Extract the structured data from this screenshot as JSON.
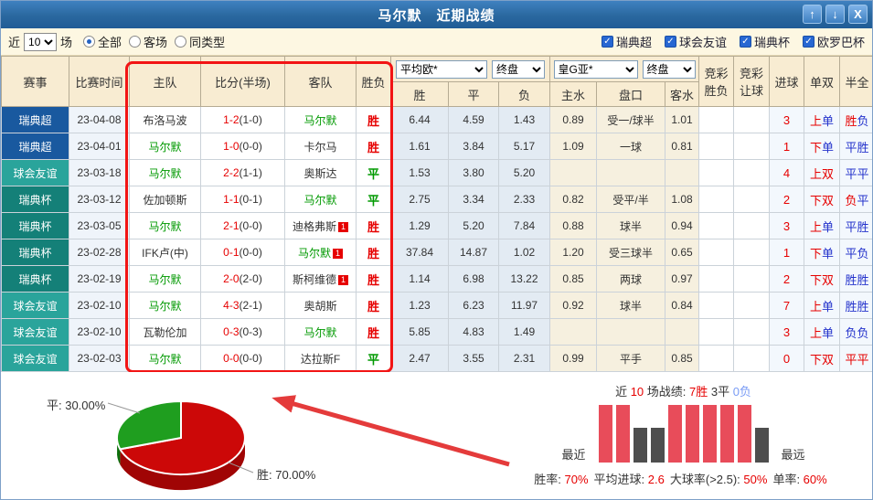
{
  "window": {
    "title": "马尔默　近期战绩",
    "buttons": {
      "up": "↑",
      "down": "↓",
      "close": "X"
    }
  },
  "filters": {
    "near_label": "近",
    "matches_value": "10",
    "unit_label": "场",
    "radios": [
      {
        "label": "全部",
        "checked": true
      },
      {
        "label": "客场",
        "checked": false
      },
      {
        "label": "同类型",
        "checked": false
      }
    ],
    "leagues": [
      {
        "label": "瑞典超",
        "checked": true
      },
      {
        "label": "球会友谊",
        "checked": true
      },
      {
        "label": "瑞典杯",
        "checked": true
      },
      {
        "label": "欧罗巴杯",
        "checked": true
      }
    ]
  },
  "table": {
    "headers": {
      "league": "赛事",
      "time": "比赛时间",
      "home": "主队",
      "score": "比分(半场)",
      "away": "客队",
      "result": "胜负",
      "win": "胜",
      "draw": "平",
      "lose": "负",
      "home_water": "主水",
      "handicap": "盘口",
      "away_water": "客水",
      "jc1a": "竞彩",
      "jc1b": "胜负",
      "jc2a": "竞彩",
      "jc2b": "让球",
      "goals": "进球",
      "odd_even": "单双",
      "half_full": "半全"
    },
    "selects": {
      "odds_company": "平均欧*",
      "odds_stage": "终盘",
      "asian_company": "皇G亚*",
      "asian_stage": "终盘"
    },
    "league_colors": {
      "瑞典超": "#19599F",
      "球会友谊": "#2AA49B",
      "瑞典杯": "#148078"
    },
    "rows": [
      {
        "league": "瑞典超",
        "date": "23-04-08",
        "home": {
          "name": "布洛马波",
          "self": false,
          "card": false
        },
        "score": "1-2",
        "half": "(1-0)",
        "away": {
          "name": "马尔默",
          "self": true,
          "card": false
        },
        "result": "胜",
        "result_c": "r",
        "win": "6.44",
        "draw": "4.59",
        "lose": "1.43",
        "hw": "0.89",
        "hcap": "受一/球半",
        "aw": "1.01",
        "goals": "3",
        "oe": [
          [
            "上",
            "r"
          ],
          [
            "单",
            "b"
          ]
        ],
        "hf": [
          [
            "胜",
            "r"
          ],
          [
            "负",
            "b"
          ]
        ]
      },
      {
        "league": "瑞典超",
        "date": "23-04-01",
        "home": {
          "name": "马尔默",
          "self": true,
          "card": false
        },
        "score": "1-0",
        "half": "(0-0)",
        "away": {
          "name": "卡尔马",
          "self": false,
          "card": false
        },
        "result": "胜",
        "result_c": "r",
        "win": "1.61",
        "draw": "3.84",
        "lose": "5.17",
        "hw": "1.09",
        "hcap": "一球",
        "aw": "0.81",
        "goals": "1",
        "oe": [
          [
            "下",
            "r"
          ],
          [
            "单",
            "b"
          ]
        ],
        "hf": [
          [
            "平",
            "b"
          ],
          [
            "胜",
            "b"
          ]
        ]
      },
      {
        "league": "球会友谊",
        "date": "23-03-18",
        "home": {
          "name": "马尔默",
          "self": true,
          "card": false
        },
        "score": "2-2",
        "half": "(1-1)",
        "away": {
          "name": "奥斯达",
          "self": false,
          "card": false
        },
        "result": "平",
        "result_c": "g",
        "win": "1.53",
        "draw": "3.80",
        "lose": "5.20",
        "hw": "",
        "hcap": "",
        "aw": "",
        "goals": "4",
        "oe": [
          [
            "上",
            "r"
          ],
          [
            "双",
            "r"
          ]
        ],
        "hf": [
          [
            "平",
            "b"
          ],
          [
            "平",
            "b"
          ]
        ]
      },
      {
        "league": "瑞典杯",
        "date": "23-03-12",
        "home": {
          "name": "佐加顿斯",
          "self": false,
          "card": false
        },
        "score": "1-1",
        "half": "(0-1)",
        "away": {
          "name": "马尔默",
          "self": true,
          "card": false
        },
        "result": "平",
        "result_c": "g",
        "win": "2.75",
        "draw": "3.34",
        "lose": "2.33",
        "hw": "0.82",
        "hcap": "受平/半",
        "aw": "1.08",
        "goals": "2",
        "oe": [
          [
            "下",
            "r"
          ],
          [
            "双",
            "r"
          ]
        ],
        "hf": [
          [
            "负",
            "r"
          ],
          [
            "平",
            "b"
          ]
        ]
      },
      {
        "league": "瑞典杯",
        "date": "23-03-05",
        "home": {
          "name": "马尔默",
          "self": true,
          "card": false
        },
        "score": "2-1",
        "half": "(0-0)",
        "away": {
          "name": "迪格弗斯",
          "self": false,
          "card": true
        },
        "result": "胜",
        "result_c": "r",
        "win": "1.29",
        "draw": "5.20",
        "lose": "7.84",
        "hw": "0.88",
        "hcap": "球半",
        "aw": "0.94",
        "goals": "3",
        "oe": [
          [
            "上",
            "r"
          ],
          [
            "单",
            "b"
          ]
        ],
        "hf": [
          [
            "平",
            "b"
          ],
          [
            "胜",
            "b"
          ]
        ]
      },
      {
        "league": "瑞典杯",
        "date": "23-02-28",
        "home": {
          "name": "IFK卢(中)",
          "self": false,
          "card": false
        },
        "score": "0-1",
        "half": "(0-0)",
        "away": {
          "name": "马尔默",
          "self": true,
          "card": true
        },
        "result": "胜",
        "result_c": "r",
        "win": "37.84",
        "draw": "14.87",
        "lose": "1.02",
        "hw": "1.20",
        "hcap": "受三球半",
        "aw": "0.65",
        "goals": "1",
        "oe": [
          [
            "下",
            "r"
          ],
          [
            "单",
            "b"
          ]
        ],
        "hf": [
          [
            "平",
            "b"
          ],
          [
            "负",
            "b"
          ]
        ]
      },
      {
        "league": "瑞典杯",
        "date": "23-02-19",
        "home": {
          "name": "马尔默",
          "self": true,
          "card": false
        },
        "score": "2-0",
        "half": "(2-0)",
        "away": {
          "name": "斯柯维德",
          "self": false,
          "card": true
        },
        "result": "胜",
        "result_c": "r",
        "win": "1.14",
        "draw": "6.98",
        "lose": "13.22",
        "hw": "0.85",
        "hcap": "两球",
        "aw": "0.97",
        "goals": "2",
        "oe": [
          [
            "下",
            "r"
          ],
          [
            "双",
            "r"
          ]
        ],
        "hf": [
          [
            "胜",
            "b"
          ],
          [
            "胜",
            "b"
          ]
        ]
      },
      {
        "league": "球会友谊",
        "date": "23-02-10",
        "home": {
          "name": "马尔默",
          "self": true,
          "card": false
        },
        "score": "4-3",
        "half": "(2-1)",
        "away": {
          "name": "奥胡斯",
          "self": false,
          "card": false
        },
        "result": "胜",
        "result_c": "r",
        "win": "1.23",
        "draw": "6.23",
        "lose": "11.97",
        "hw": "0.92",
        "hcap": "球半",
        "aw": "0.84",
        "goals": "7",
        "oe": [
          [
            "上",
            "r"
          ],
          [
            "单",
            "b"
          ]
        ],
        "hf": [
          [
            "胜",
            "b"
          ],
          [
            "胜",
            "b"
          ]
        ]
      },
      {
        "league": "球会友谊",
        "date": "23-02-10",
        "home": {
          "name": "瓦勒伦加",
          "self": false,
          "card": false
        },
        "score": "0-3",
        "half": "(0-3)",
        "away": {
          "name": "马尔默",
          "self": true,
          "card": false
        },
        "result": "胜",
        "result_c": "r",
        "win": "5.85",
        "draw": "4.83",
        "lose": "1.49",
        "hw": "",
        "hcap": "",
        "aw": "",
        "goals": "3",
        "oe": [
          [
            "上",
            "r"
          ],
          [
            "单",
            "b"
          ]
        ],
        "hf": [
          [
            "负",
            "b"
          ],
          [
            "负",
            "b"
          ]
        ]
      },
      {
        "league": "球会友谊",
        "date": "23-02-03",
        "home": {
          "name": "马尔默",
          "self": true,
          "card": false
        },
        "score": "0-0",
        "half": "(0-0)",
        "away": {
          "name": "达拉斯F",
          "self": false,
          "card": false
        },
        "result": "平",
        "result_c": "g",
        "win": "2.47",
        "draw": "3.55",
        "lose": "2.31",
        "hw": "0.99",
        "hcap": "平手",
        "aw": "0.85",
        "goals": "0",
        "oe": [
          [
            "下",
            "r"
          ],
          [
            "双",
            "r"
          ]
        ],
        "hf": [
          [
            "平",
            "r"
          ],
          [
            "平",
            "r"
          ]
        ]
      }
    ]
  },
  "pie": {
    "draw_label": "平: 30.00%",
    "win_label": "胜: 70.00%"
  },
  "form": {
    "title_parts": [
      {
        "t": "近 ",
        "c": "dark"
      },
      {
        "t": "10",
        "c": "red"
      },
      {
        "t": " 场战绩: ",
        "c": "dark"
      },
      {
        "t": "7胜",
        "c": "red"
      },
      {
        "t": " 3平 ",
        "c": "dark"
      },
      {
        "t": "0负",
        "c": "lblue"
      }
    ],
    "results": [
      "胜",
      "胜",
      "平",
      "平",
      "胜",
      "胜",
      "胜",
      "胜",
      "胜",
      "平"
    ],
    "nearest": "最近",
    "farthest": "最远",
    "stats": [
      {
        "label": "胜率: ",
        "value": "70%"
      },
      {
        "label": "平均进球: ",
        "value": "2.6"
      },
      {
        "label": "大球率(>2.5): ",
        "value": "50%"
      },
      {
        "label": "单率: ",
        "value": "60%"
      }
    ]
  },
  "chart_data": [
    {
      "type": "pie",
      "labels": [
        "胜",
        "平"
      ],
      "values": [
        70,
        30
      ],
      "unit": "%",
      "colors": [
        "#CC0808",
        "#1F9E1F"
      ],
      "annotations": [
        "胜: 70.00%",
        "平: 30.00%"
      ],
      "style": "3d"
    },
    {
      "type": "bar",
      "title": "近 10 场战绩: 7胜 3平 0负",
      "categories": [
        "最近",
        "",
        "",
        "",
        "",
        "",
        "",
        "",
        "",
        "最远"
      ],
      "series": [
        {
          "name": "近10场结果",
          "values": [
            "胜",
            "胜",
            "平",
            "平",
            "胜",
            "胜",
            "胜",
            "胜",
            "胜",
            "平"
          ]
        }
      ],
      "value_colors": {
        "胜": "#E84C5A",
        "平": "#4E4E4E"
      },
      "summary": {
        "胜率": "70%",
        "平均进球": "2.6",
        "大球率(>2.5)": "50%",
        "单率": "60%"
      }
    }
  ]
}
